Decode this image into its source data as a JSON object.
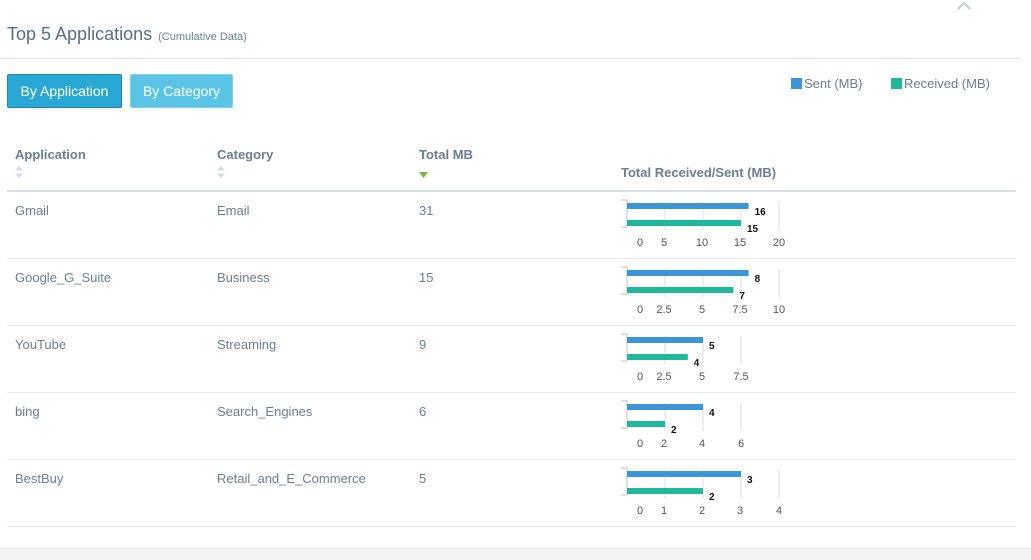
{
  "colors": {
    "sent": "#3b95d6",
    "received": "#1fb89a",
    "accent": "#2aa8d4"
  },
  "panel": {
    "title": "Top 5 Applications",
    "subtitle": "(Cumulative Data)",
    "collapse_icon": "chevron-up-icon"
  },
  "buttons": {
    "by_application": "By Application",
    "by_category": "By Category"
  },
  "legend": {
    "sent": "Sent (MB)",
    "received": "Received (MB)"
  },
  "table": {
    "columns": {
      "application": "Application",
      "category": "Category",
      "total": "Total MB",
      "chart": "Total Received/Sent (MB)"
    },
    "rows": [
      {
        "application": "Gmail",
        "category": "Email",
        "total": "31"
      },
      {
        "application": "Google_G_Suite",
        "category": "Business",
        "total": "15"
      },
      {
        "application": "YouTube",
        "category": "Streaming",
        "total": "9"
      },
      {
        "application": "bing",
        "category": "Search_Engines",
        "total": "6"
      },
      {
        "application": "BestBuy",
        "category": "Retail_and_E_Commerce",
        "total": "5"
      }
    ]
  },
  "chart_data": [
    {
      "type": "bar",
      "orientation": "horizontal",
      "title": "Gmail",
      "series": [
        {
          "name": "Sent (MB)",
          "values": [
            16
          ]
        },
        {
          "name": "Received (MB)",
          "values": [
            15
          ]
        }
      ],
      "xlim": [
        0,
        20
      ],
      "ticks": [
        "0",
        "5",
        "10",
        "15",
        "20"
      ]
    },
    {
      "type": "bar",
      "orientation": "horizontal",
      "title": "Google_G_Suite",
      "series": [
        {
          "name": "Sent (MB)",
          "values": [
            8
          ]
        },
        {
          "name": "Received (MB)",
          "values": [
            7
          ]
        }
      ],
      "xlim": [
        0,
        10
      ],
      "ticks": [
        "0",
        "2.5",
        "5",
        "7.5",
        "10"
      ]
    },
    {
      "type": "bar",
      "orientation": "horizontal",
      "title": "YouTube",
      "series": [
        {
          "name": "Sent (MB)",
          "values": [
            5
          ]
        },
        {
          "name": "Received (MB)",
          "values": [
            4
          ]
        }
      ],
      "xlim": [
        0,
        7.5
      ],
      "ticks": [
        "0",
        "2.5",
        "5",
        "7.5"
      ]
    },
    {
      "type": "bar",
      "orientation": "horizontal",
      "title": "bing",
      "series": [
        {
          "name": "Sent (MB)",
          "values": [
            4
          ]
        },
        {
          "name": "Received (MB)",
          "values": [
            2
          ]
        }
      ],
      "xlim": [
        0,
        6
      ],
      "ticks": [
        "0",
        "2",
        "4",
        "6"
      ]
    },
    {
      "type": "bar",
      "orientation": "horizontal",
      "title": "BestBuy",
      "series": [
        {
          "name": "Sent (MB)",
          "values": [
            3
          ]
        },
        {
          "name": "Received (MB)",
          "values": [
            2
          ]
        }
      ],
      "xlim": [
        0,
        4
      ],
      "ticks": [
        "0",
        "1",
        "2",
        "3",
        "4"
      ]
    }
  ]
}
